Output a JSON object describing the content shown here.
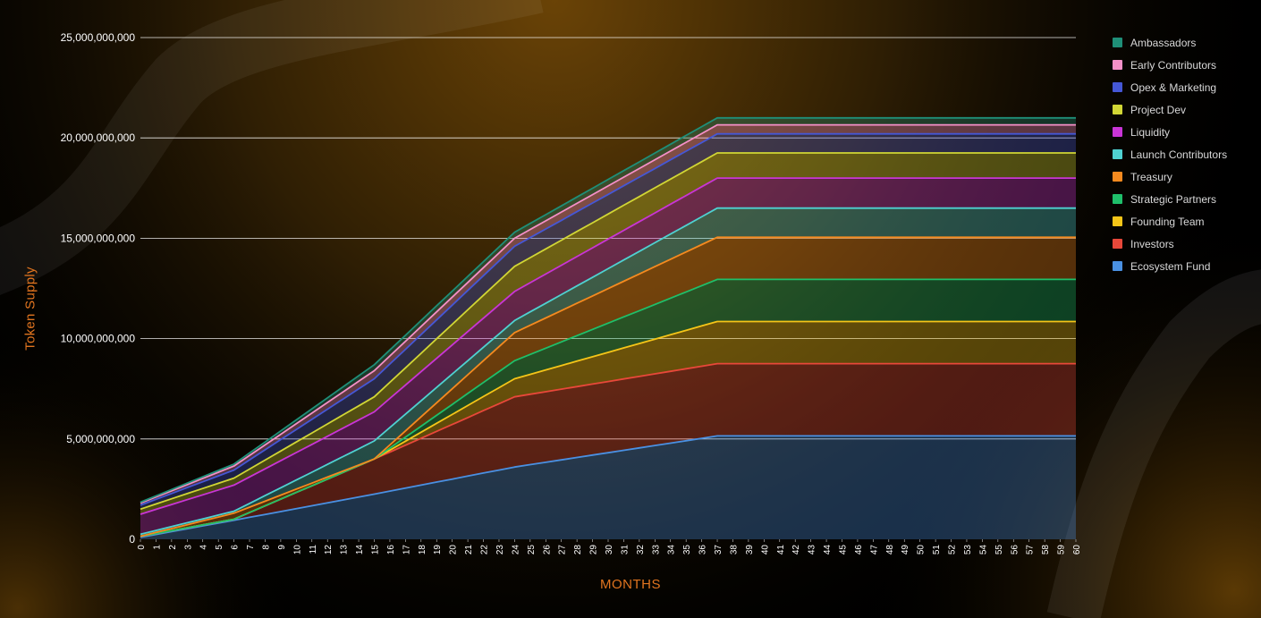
{
  "chart_data": {
    "type": "area",
    "stacked": true,
    "title": "",
    "xlabel": "MONTHS",
    "ylabel": "Token Supply",
    "ylim": [
      0,
      25000000000
    ],
    "yticks": [
      0,
      5000000000,
      10000000000,
      15000000000,
      20000000000,
      25000000000
    ],
    "ytick_labels": [
      "0",
      "5,000,000,000",
      "10,000,000,000",
      "15,000,000,000",
      "20,000,000,000",
      "25,000,000,000"
    ],
    "x": [
      0,
      1,
      2,
      3,
      4,
      5,
      6,
      7,
      8,
      9,
      10,
      11,
      12,
      13,
      14,
      15,
      16,
      17,
      18,
      19,
      20,
      21,
      22,
      23,
      24,
      25,
      26,
      27,
      28,
      29,
      30,
      31,
      32,
      33,
      34,
      35,
      36,
      37,
      38,
      39,
      40,
      41,
      42,
      43,
      44,
      45,
      46,
      47,
      48,
      49,
      50,
      51,
      52,
      53,
      54,
      55,
      56,
      57,
      58,
      59,
      60
    ],
    "key_months": [
      0,
      6,
      15,
      24,
      37,
      60
    ],
    "grid": "horizontal",
    "legend_position": "right",
    "series": [
      {
        "name": "Ecosystem Fund",
        "color": "#4a90e2",
        "key_values": [
          100000000,
          950000000,
          2250000000,
          3600000000,
          5150000000,
          5150000000
        ]
      },
      {
        "name": "Investors",
        "color": "#e8483a",
        "key_values": [
          50000000,
          50000000,
          1750000000,
          3500000000,
          3600000000,
          3600000000
        ]
      },
      {
        "name": "Founding Team",
        "color": "#f5c518",
        "key_values": [
          0,
          0,
          0,
          900000000,
          2100000000,
          2100000000
        ]
      },
      {
        "name": "Strategic Partners",
        "color": "#1fbf6a",
        "key_values": [
          0,
          0,
          0,
          900000000,
          2100000000,
          2100000000
        ]
      },
      {
        "name": "Treasury",
        "color": "#f58a1f",
        "key_values": [
          0,
          300000000,
          0,
          1400000000,
          2100000000,
          2100000000
        ]
      },
      {
        "name": "Launch Contributors",
        "color": "#4fd1d1",
        "key_values": [
          100000000,
          100000000,
          900000000,
          600000000,
          1450000000,
          1450000000
        ]
      },
      {
        "name": "Liquidity",
        "color": "#c935d6",
        "key_values": [
          1000000000,
          1300000000,
          1450000000,
          1450000000,
          1500000000,
          1500000000
        ]
      },
      {
        "name": "Project Dev",
        "color": "#d1d635",
        "key_values": [
          250000000,
          350000000,
          750000000,
          1250000000,
          1250000000,
          1250000000
        ]
      },
      {
        "name": "Opex & Marketing",
        "color": "#4557d6",
        "key_values": [
          200000000,
          400000000,
          900000000,
          1000000000,
          950000000,
          950000000
        ]
      },
      {
        "name": "Early Contributors",
        "color": "#f590c8",
        "key_values": [
          100000000,
          200000000,
          400000000,
          400000000,
          450000000,
          450000000
        ]
      },
      {
        "name": "Ambassadors",
        "color": "#1f8f78",
        "key_values": [
          50000000,
          100000000,
          300000000,
          300000000,
          350000000,
          350000000
        ]
      }
    ]
  }
}
